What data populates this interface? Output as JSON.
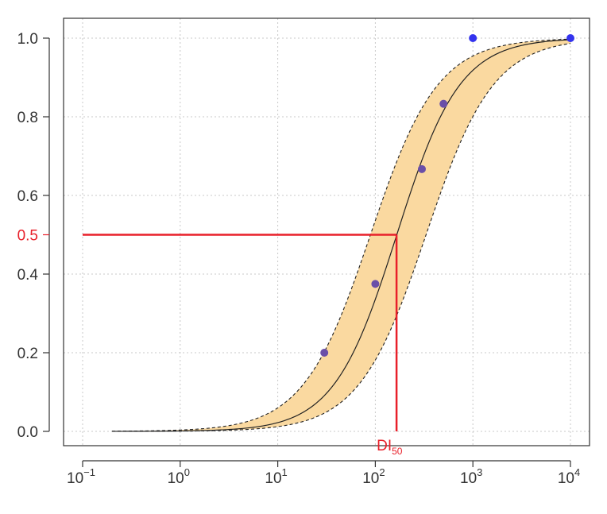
{
  "chart_data": {
    "type": "line",
    "title": "",
    "xlabel": "",
    "ylabel": "",
    "x_scale": "log10",
    "xlim": [
      0.1,
      10000
    ],
    "ylim": [
      0,
      1
    ],
    "grid": true,
    "x_ticks": [
      {
        "value": 0.1,
        "base": "10",
        "exp": "−1"
      },
      {
        "value": 1,
        "base": "10",
        "exp": "0"
      },
      {
        "value": 10,
        "base": "10",
        "exp": "1"
      },
      {
        "value": 100,
        "base": "10",
        "exp": "2"
      },
      {
        "value": 1000,
        "base": "10",
        "exp": "3"
      },
      {
        "value": 10000,
        "base": "10",
        "exp": "4"
      }
    ],
    "y_ticks": [
      {
        "value": 0.0,
        "label": "0.0"
      },
      {
        "value": 0.2,
        "label": "0.2"
      },
      {
        "value": 0.4,
        "label": "0.4"
      },
      {
        "value": 0.6,
        "label": "0.6"
      },
      {
        "value": 0.8,
        "label": "0.8"
      },
      {
        "value": 1.0,
        "label": "1.0"
      }
    ],
    "fit": {
      "model": "logistic in log10(x)",
      "center_log10": 2.22,
      "slope": 3.1,
      "band_lower_center_log10": 2.52,
      "band_upper_center_log10": 1.95,
      "band_slope": 2.9,
      "x_start": 0.2,
      "x_end": 10000
    },
    "points": [
      {
        "x": 30,
        "y": 0.2,
        "color": "#6a4fa8"
      },
      {
        "x": 100,
        "y": 0.375,
        "color": "#6a4fa8"
      },
      {
        "x": 300,
        "y": 0.667,
        "color": "#6a4fa8"
      },
      {
        "x": 500,
        "y": 0.833,
        "color": "#6a4fa8"
      },
      {
        "x": 1000,
        "y": 1.0,
        "color": "#3333ee"
      },
      {
        "x": 10000,
        "y": 1.0,
        "color": "#3333ee"
      }
    ],
    "reference": {
      "y": 0.5,
      "y_label": "0.5",
      "x": 165,
      "x_label_main": "DI",
      "x_label_sub": "50",
      "color": "#e8202a"
    },
    "colors": {
      "band_fill": "#fad9a0",
      "curve": "#222222",
      "band_edge": "#222222",
      "grid": "#c8c8c8",
      "axis": "#333333"
    }
  }
}
